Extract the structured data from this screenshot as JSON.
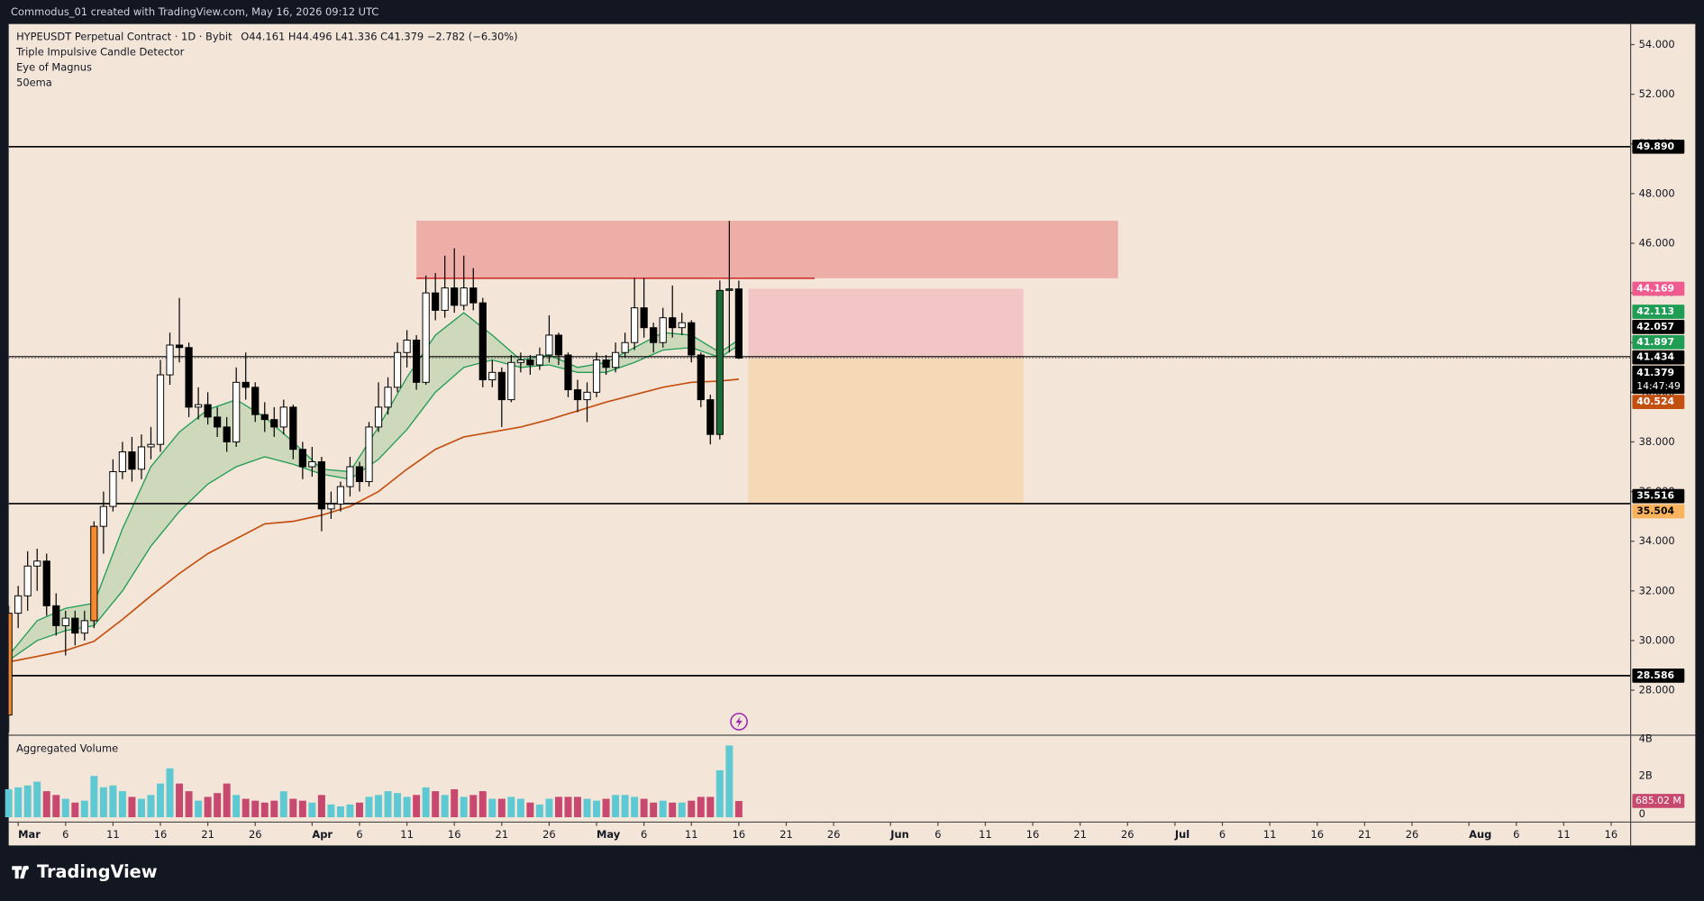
{
  "header": "Commodus_01 created with TradingView.com, May 16, 2026 09:12 UTC",
  "footer": "TradingView",
  "chart_data": {
    "type": "candlestick",
    "title": "HYPEUSDT Perpetual Contract · 1D · Bybit",
    "legend_ohlc": "O44.161  H44.496  L41.336  C41.379  −2.782 (−6.30%)",
    "indicators": [
      "Triple Impulsive Candle Detector",
      "Eye of Magnus",
      "50ema"
    ],
    "x": [
      "2026-02-28",
      "2026-03-01",
      "2026-03-02",
      "2026-03-03",
      "2026-03-04",
      "2026-03-05",
      "2026-03-06",
      "2026-03-07",
      "2026-03-08",
      "2026-03-09",
      "2026-03-10",
      "2026-03-11",
      "2026-03-12",
      "2026-03-13",
      "2026-03-14",
      "2026-03-15",
      "2026-03-16",
      "2026-03-17",
      "2026-03-18",
      "2026-03-19",
      "2026-03-20",
      "2026-03-21",
      "2026-03-22",
      "2026-03-23",
      "2026-03-24",
      "2026-03-25",
      "2026-03-26",
      "2026-03-27",
      "2026-03-28",
      "2026-03-29",
      "2026-03-30",
      "2026-03-31",
      "2026-04-01",
      "2026-04-02",
      "2026-04-03",
      "2026-04-04",
      "2026-04-05",
      "2026-04-06",
      "2026-04-07",
      "2026-04-08",
      "2026-04-09",
      "2026-04-10",
      "2026-04-11",
      "2026-04-12",
      "2026-04-13",
      "2026-04-14",
      "2026-04-15",
      "2026-04-16",
      "2026-04-17",
      "2026-04-18",
      "2026-04-19",
      "2026-04-20",
      "2026-04-21",
      "2026-04-22",
      "2026-04-23",
      "2026-04-24",
      "2026-04-25",
      "2026-04-26",
      "2026-04-27",
      "2026-04-28",
      "2026-04-29",
      "2026-04-30",
      "2026-05-01",
      "2026-05-02",
      "2026-05-03",
      "2026-05-04",
      "2026-05-05",
      "2026-05-06",
      "2026-05-07",
      "2026-05-08",
      "2026-05-09",
      "2026-05-10",
      "2026-05-11",
      "2026-05-12",
      "2026-05-13",
      "2026-05-14",
      "2026-05-15",
      "2026-05-16"
    ],
    "open": [
      27.0,
      31.1,
      31.8,
      33.0,
      33.2,
      31.4,
      30.6,
      30.9,
      30.3,
      30.8,
      34.6,
      35.4,
      36.8,
      37.6,
      36.9,
      37.8,
      37.9,
      40.7,
      41.9,
      41.8,
      39.4,
      39.5,
      39.0,
      38.6,
      38.0,
      40.4,
      40.2,
      39.1,
      38.9,
      38.6,
      39.4,
      37.7,
      37.0,
      37.2,
      35.3,
      35.5,
      36.2,
      37.0,
      36.4,
      38.6,
      39.4,
      40.2,
      41.6,
      42.1,
      40.4,
      44.0,
      43.3,
      44.2,
      43.5,
      44.2,
      43.6,
      40.5,
      40.8,
      39.7,
      41.2,
      41.3,
      41.1,
      41.5,
      42.3,
      41.5,
      40.1,
      39.7,
      40.0,
      41.3,
      41.0,
      41.6,
      42.0,
      43.4,
      42.6,
      42.0,
      43.0,
      42.6,
      42.8,
      41.5,
      39.7,
      38.3,
      44.1,
      44.161
    ],
    "high": [
      31.4,
      32.2,
      33.6,
      33.7,
      33.5,
      31.9,
      31.2,
      31.2,
      31.2,
      34.8,
      36.0,
      37.3,
      38.0,
      38.2,
      38.3,
      38.6,
      41.3,
      42.4,
      43.8,
      42.0,
      40.2,
      40.0,
      39.4,
      39.0,
      41.0,
      41.6,
      40.4,
      39.6,
      39.4,
      39.7,
      39.5,
      38.0,
      37.8,
      37.4,
      36.0,
      36.4,
      37.4,
      37.2,
      38.8,
      40.4,
      40.6,
      42.0,
      42.5,
      42.3,
      44.7,
      44.8,
      45.5,
      45.8,
      45.5,
      45.0,
      43.8,
      41.3,
      41.0,
      41.5,
      41.6,
      41.5,
      41.8,
      43.1,
      42.4,
      41.6,
      40.5,
      40.4,
      41.6,
      41.5,
      42.0,
      42.4,
      44.6,
      44.6,
      42.8,
      43.4,
      44.3,
      43.2,
      42.9,
      41.6,
      39.9,
      44.5,
      46.9,
      44.496
    ],
    "low": [
      26.3,
      30.5,
      31.2,
      32.0,
      31.0,
      30.2,
      29.4,
      29.8,
      30.0,
      30.5,
      33.5,
      35.2,
      36.5,
      36.4,
      36.5,
      37.3,
      37.6,
      40.3,
      41.2,
      39.0,
      38.9,
      38.7,
      38.2,
      37.6,
      37.8,
      39.7,
      38.8,
      38.4,
      38.2,
      38.3,
      37.3,
      36.5,
      36.6,
      34.4,
      34.9,
      35.2,
      35.8,
      36.0,
      36.2,
      38.4,
      39.1,
      40.0,
      41.0,
      40.1,
      40.3,
      42.9,
      43.0,
      43.2,
      43.3,
      43.3,
      40.2,
      40.2,
      38.6,
      39.6,
      40.8,
      40.7,
      40.9,
      41.2,
      41.1,
      39.8,
      39.2,
      38.8,
      39.8,
      40.7,
      40.8,
      41.4,
      41.7,
      42.2,
      41.6,
      41.8,
      42.2,
      42.3,
      41.2,
      39.4,
      37.9,
      38.1,
      41.6,
      41.336
    ],
    "close": [
      31.1,
      31.8,
      33.0,
      33.2,
      31.4,
      30.6,
      30.9,
      30.3,
      30.8,
      34.6,
      35.4,
      36.8,
      37.6,
      36.9,
      37.8,
      37.9,
      40.7,
      41.9,
      41.8,
      39.4,
      39.5,
      39.0,
      38.6,
      38.0,
      40.4,
      40.2,
      39.1,
      38.9,
      38.6,
      39.4,
      37.7,
      37.0,
      37.2,
      35.3,
      35.5,
      36.2,
      37.0,
      36.4,
      38.6,
      39.4,
      40.2,
      41.6,
      42.1,
      40.4,
      44.0,
      43.3,
      44.2,
      43.5,
      44.2,
      43.6,
      40.5,
      40.8,
      39.7,
      41.2,
      41.3,
      41.1,
      41.5,
      42.3,
      41.5,
      40.1,
      39.7,
      40.0,
      41.3,
      41.0,
      41.6,
      42.0,
      43.4,
      42.6,
      42.0,
      43.0,
      42.6,
      42.8,
      41.5,
      39.7,
      38.3,
      44.1,
      44.161,
      41.379
    ],
    "countdown": "14:47:49",
    "up_color": "#ffffff",
    "down_color": "#000000",
    "highlights": [
      {
        "date": "2026-02-28",
        "color": "#f7892f"
      },
      {
        "date": "2026-03-09",
        "color": "#f7892f"
      },
      {
        "date": "2026-05-14",
        "color": "#1e6b3a"
      },
      {
        "date": "2026-05-15",
        "color": "#1e6b3a"
      }
    ],
    "xlim": [
      "2026-02-28",
      "2026-08-18"
    ],
    "xticks": [
      {
        "value": "2026-03-01",
        "label": "Mar"
      },
      {
        "value": "2026-03-06",
        "label": "6"
      },
      {
        "value": "2026-03-11",
        "label": "11"
      },
      {
        "value": "2026-03-16",
        "label": "16"
      },
      {
        "value": "2026-03-21",
        "label": "21"
      },
      {
        "value": "2026-03-26",
        "label": "26"
      },
      {
        "value": "2026-04-01",
        "label": "Apr"
      },
      {
        "value": "2026-04-06",
        "label": "6"
      },
      {
        "value": "2026-04-11",
        "label": "11"
      },
      {
        "value": "2026-04-16",
        "label": "16"
      },
      {
        "value": "2026-04-21",
        "label": "21"
      },
      {
        "value": "2026-04-26",
        "label": "26"
      },
      {
        "value": "2026-05-01",
        "label": "May"
      },
      {
        "value": "2026-05-06",
        "label": "6"
      },
      {
        "value": "2026-05-11",
        "label": "11"
      },
      {
        "value": "2026-05-16",
        "label": "16"
      },
      {
        "value": "2026-05-21",
        "label": "21"
      },
      {
        "value": "2026-05-26",
        "label": "26"
      },
      {
        "value": "2026-06-01",
        "label": "Jun"
      },
      {
        "value": "2026-06-06",
        "label": "6"
      },
      {
        "value": "2026-06-11",
        "label": "11"
      },
      {
        "value": "2026-06-16",
        "label": "16"
      },
      {
        "value": "2026-06-21",
        "label": "21"
      },
      {
        "value": "2026-06-26",
        "label": "26"
      },
      {
        "value": "2026-07-01",
        "label": "Jul"
      },
      {
        "value": "2026-07-06",
        "label": "6"
      },
      {
        "value": "2026-07-11",
        "label": "11"
      },
      {
        "value": "2026-07-16",
        "label": "16"
      },
      {
        "value": "2026-07-21",
        "label": "21"
      },
      {
        "value": "2026-07-26",
        "label": "26"
      },
      {
        "value": "2026-08-01",
        "label": "Aug"
      },
      {
        "value": "2026-08-06",
        "label": "6"
      },
      {
        "value": "2026-08-11",
        "label": "11"
      },
      {
        "value": "2026-08-16",
        "label": "16"
      }
    ],
    "ylim": [
      26.21,
      54.83
    ],
    "yticks": [
      {
        "value": 28,
        "label": "28.000"
      },
      {
        "value": 30,
        "label": "30.000"
      },
      {
        "value": 32,
        "label": "32.000"
      },
      {
        "value": 34,
        "label": "34.000"
      },
      {
        "value": 36,
        "label": "36.000"
      },
      {
        "value": 38,
        "label": "38.000"
      },
      {
        "value": 40,
        "label": "40.000"
      },
      {
        "value": 42,
        "label": "42.000"
      },
      {
        "value": 44,
        "label": "44.000"
      },
      {
        "value": 46,
        "label": "46.000"
      },
      {
        "value": 48,
        "label": "48.000"
      },
      {
        "value": 50,
        "label": "50.000"
      },
      {
        "value": 52,
        "label": "52.000"
      },
      {
        "value": 54,
        "label": "54.000"
      }
    ],
    "grid": false,
    "overlays": {
      "x": [
        "2026-02-28",
        "2026-03-03",
        "2026-03-06",
        "2026-03-09",
        "2026-03-12",
        "2026-03-15",
        "2026-03-18",
        "2026-03-21",
        "2026-03-24",
        "2026-03-27",
        "2026-03-30",
        "2026-04-02",
        "2026-04-05",
        "2026-04-08",
        "2026-04-11",
        "2026-04-14",
        "2026-04-17",
        "2026-04-20",
        "2026-04-23",
        "2026-04-26",
        "2026-04-29",
        "2026-05-02",
        "2026-05-05",
        "2026-05-08",
        "2026-05-11",
        "2026-05-14",
        "2026-05-16"
      ],
      "band_fill": "rgba(76,175,80,0.22)",
      "series": [
        {
          "name": "50ema",
          "color": "#c4500f",
          "values": [
            29.14,
            29.36,
            29.6,
            29.97,
            30.85,
            31.8,
            32.7,
            33.5,
            34.1,
            34.7,
            34.8,
            35.05,
            35.4,
            36.0,
            36.9,
            37.7,
            38.2,
            38.4,
            38.6,
            38.9,
            39.25,
            39.6,
            39.9,
            40.2,
            40.4,
            40.45,
            40.524
          ]
        },
        {
          "color": "#1f9d55",
          "values": [
            29.4,
            30.8,
            31.3,
            31.5,
            34.5,
            37.0,
            38.4,
            39.3,
            39.7,
            39.0,
            38.0,
            36.9,
            36.8,
            38.6,
            40.6,
            42.3,
            43.2,
            42.3,
            41.3,
            41.5,
            41.0,
            41.2,
            41.8,
            42.4,
            42.3,
            41.6,
            42.113
          ]
        },
        {
          "color": "#1f9d55",
          "values": [
            29.2,
            30.0,
            30.4,
            30.6,
            32.0,
            33.8,
            35.2,
            36.3,
            37.0,
            37.4,
            37.1,
            36.7,
            36.5,
            37.3,
            38.5,
            40.0,
            41.0,
            41.3,
            41.0,
            41.1,
            40.8,
            40.8,
            41.2,
            41.7,
            41.8,
            41.4,
            41.897
          ]
        }
      ]
    },
    "hlines": [
      {
        "value": 49.89,
        "label": "49.890"
      },
      41.434,
      35.516,
      28.586
    ],
    "extra_tags": [
      42.057
    ],
    "zone": {
      "top": 46.91,
      "bottom": 44.59,
      "start": "2026-04-12",
      "end": "2026-06-25",
      "color": "rgba(229,115,115,0.48)"
    },
    "segment": {
      "value": 44.59,
      "start": "2026-04-12",
      "end": "2026-05-24",
      "color": "#d32f2f"
    },
    "position": {
      "entry": 41.379,
      "stop": 44.169,
      "target": 35.504,
      "start": "2026-05-17",
      "end": "2026-06-15",
      "stop_color": "rgba(242,160,175,0.45)",
      "target_color": "rgba(249,200,140,0.45)",
      "stop_tag": "#ef5b8f",
      "target_tag": "#f9b35c"
    },
    "volume": {
      "title": "Aggregated Volume",
      "up_color": "#5fc9d3",
      "down_color": "#c8496f",
      "ylim": [
        -0.17,
        4.0
      ],
      "yticks": [
        0,
        {
          "value": 2,
          "label": "2B"
        },
        {
          "value": 4,
          "label": "4B"
        }
      ],
      "values": [
        1.3,
        1.4,
        1.5,
        1.7,
        1.2,
        1.0,
        0.8,
        0.6,
        0.7,
        2.0,
        1.4,
        1.5,
        1.2,
        0.9,
        0.8,
        1.0,
        1.6,
        2.4,
        1.6,
        1.2,
        0.7,
        0.9,
        1.1,
        1.6,
        1.0,
        0.8,
        0.7,
        0.6,
        0.7,
        1.2,
        0.8,
        0.7,
        0.6,
        1.0,
        0.5,
        0.4,
        0.5,
        0.6,
        0.9,
        1.0,
        1.2,
        1.1,
        0.9,
        1.0,
        1.4,
        1.2,
        1.0,
        1.3,
        0.9,
        1.0,
        1.2,
        0.8,
        0.8,
        0.9,
        0.8,
        0.6,
        0.5,
        0.8,
        0.9,
        0.9,
        0.9,
        0.8,
        0.7,
        0.8,
        1.0,
        1.0,
        0.9,
        0.8,
        0.6,
        0.7,
        0.6,
        0.6,
        0.7,
        0.9,
        0.9,
        2.3,
        3.6,
        0.68502
      ],
      "value_labels": [
        null,
        null,
        null,
        null,
        null,
        null,
        null,
        null,
        null,
        null,
        null,
        null,
        null,
        null,
        null,
        null,
        null,
        null,
        null,
        null,
        null,
        null,
        null,
        null,
        null,
        null,
        null,
        null,
        null,
        null,
        null,
        null,
        null,
        null,
        null,
        null,
        null,
        null,
        null,
        null,
        null,
        null,
        null,
        null,
        null,
        null,
        null,
        null,
        null,
        null,
        null,
        null,
        null,
        null,
        null,
        null,
        null,
        null,
        null,
        null,
        null,
        null,
        null,
        null,
        null,
        null,
        null,
        null,
        null,
        null,
        null,
        null,
        null,
        null,
        null,
        null,
        null,
        "685.02 M"
      ]
    }
  }
}
